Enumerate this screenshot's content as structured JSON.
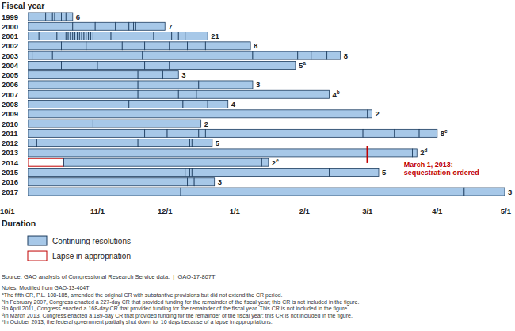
{
  "chart_data": {
    "type": "gantt",
    "orientation": "horizontal",
    "title": "Fiscal year",
    "x_label": "Duration",
    "categories": [
      "1999",
      "2000",
      "2001",
      "2002",
      "2003",
      "2004",
      "2005",
      "2006",
      "2007",
      "2008",
      "2009",
      "2010",
      "2011",
      "2012",
      "2013",
      "2014",
      "2015",
      "2016",
      "2017"
    ],
    "xlim": [
      0,
      212
    ],
    "xticks": [
      {
        "value": 0,
        "label": "10/1"
      },
      {
        "value": 31,
        "label": "11/1"
      },
      {
        "value": 61,
        "label": "12/1"
      },
      {
        "value": 92,
        "label": "1/1"
      },
      {
        "value": 123,
        "label": "2/1"
      },
      {
        "value": 151,
        "label": "3/1"
      },
      {
        "value": 182,
        "label": "4/1"
      },
      {
        "value": 212,
        "label": "5/1"
      }
    ],
    "series": [
      {
        "name": "Continuing resolutions",
        "color": "#a7c8e8",
        "values": [
          [
            8,
            11,
            12,
            15,
            17,
            20
          ],
          [
            20,
            30,
            39,
            45,
            47,
            48,
            61
          ],
          [
            5,
            13,
            17,
            18,
            19,
            20,
            21,
            22,
            23,
            24,
            25,
            26,
            27,
            28,
            29,
            37,
            56,
            64,
            67,
            70,
            80
          ],
          [
            15,
            26,
            42,
            52,
            63,
            71,
            79,
            99
          ],
          [
            2,
            11,
            51,
            100,
            120,
            126,
            133,
            139
          ],
          [
            15,
            31,
            52,
            63,
            119
          ],
          [
            49,
            60,
            67
          ],
          [
            49,
            76,
            100
          ],
          [
            49,
            67,
            75,
            134
          ],
          [
            45,
            69,
            80,
            89
          ],
          [
            151,
            153
          ],
          [
            29,
            77
          ],
          [
            52,
            62,
            76,
            79,
            149,
            163,
            174,
            182
          ],
          [
            4,
            49,
            72,
            73,
            82
          ],
          [
            171,
            173
          ],
          [
            104,
            107
          ],
          [
            70,
            72,
            73,
            134,
            156
          ],
          [
            71,
            74,
            83
          ],
          [
            68,
            194,
            212
          ]
        ]
      },
      {
        "name": "Lapse in appropriation",
        "color": "#c00000",
        "values": [
          null,
          null,
          null,
          null,
          null,
          null,
          null,
          null,
          null,
          null,
          null,
          null,
          null,
          null,
          null,
          [
            16
          ],
          null,
          null,
          null
        ]
      }
    ],
    "counts": [
      6,
      7,
      21,
      8,
      8,
      5,
      3,
      3,
      4,
      4,
      2,
      2,
      8,
      5,
      2,
      2,
      5,
      3,
      3
    ],
    "count_notes": [
      null,
      null,
      null,
      null,
      null,
      "a",
      null,
      null,
      "b",
      null,
      null,
      null,
      "c",
      null,
      "d",
      "e",
      null,
      null,
      null
    ],
    "annotation": {
      "lines": [
        "March 1, 2013:",
        "sequestration ordered"
      ],
      "x": 151,
      "category": "2013",
      "color": "#c00000"
    },
    "source": "Source: GAO analysis of Congressional Research Service data.  |  GAO-17-807T",
    "notes_heading": "Notes: Modified from GAO-13-464T",
    "notes": [
      {
        "mark": "a",
        "text": "The fifth CR, P.L. 108-185, amended the original CR with substantive provisions but did not extend the CR period."
      },
      {
        "mark": "b",
        "text": "In February 2007, Congress enacted a 227-day CR that provided funding for the remainder of the fiscal year; this CR is not included in the figure."
      },
      {
        "mark": "c",
        "text": "In April 2011, Congress enacted a 168-day CR that provided funding for the remainder of the fiscal year. This CR is not included in the figure."
      },
      {
        "mark": "d",
        "text": "In March 2013, Congress enacted a 189-day CR that provided funding for the remainder of the fiscal year; this CR is not included in the figure."
      },
      {
        "mark": "e",
        "text": "In October 2013, the federal government partially shut down for 16 days because of a lapse in appropriations."
      }
    ]
  }
}
